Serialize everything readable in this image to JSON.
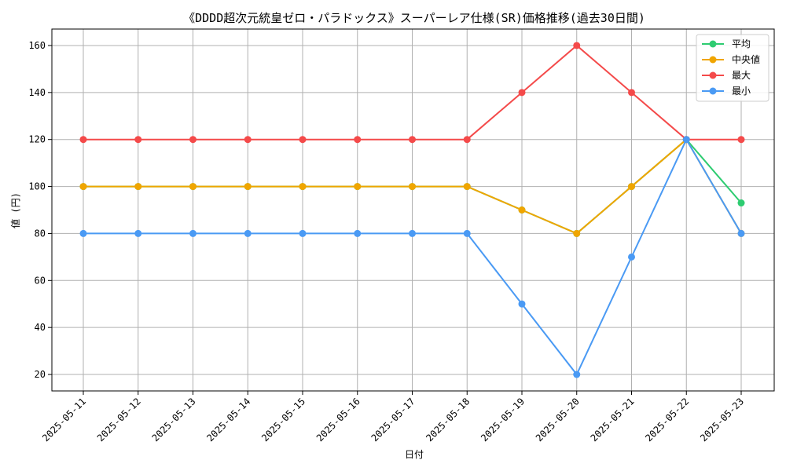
{
  "chart_data": {
    "type": "line",
    "title": "《DDDD超次元統皇ゼロ・パラドックス》スーパーレア仕様(SR)価格推移(過去30日間)",
    "xlabel": "日付",
    "ylabel": "値 (円)",
    "ylim": [
      13,
      167
    ],
    "yticks": [
      20,
      40,
      60,
      80,
      100,
      120,
      140,
      160
    ],
    "grid": true,
    "legend_position": "top-right",
    "categories": [
      "2025-05-11",
      "2025-05-12",
      "2025-05-13",
      "2025-05-14",
      "2025-05-15",
      "2025-05-16",
      "2025-05-17",
      "2025-05-18",
      "2025-05-19",
      "2025-05-20",
      "2025-05-21",
      "2025-05-22",
      "2025-05-23"
    ],
    "series": [
      {
        "name": "平均",
        "color": "#2ecc71",
        "values": [
          100,
          100,
          100,
          100,
          100,
          100,
          100,
          100,
          90,
          80,
          100,
          120,
          93
        ]
      },
      {
        "name": "中央値",
        "color": "#f0a500",
        "values": [
          100,
          100,
          100,
          100,
          100,
          100,
          100,
          100,
          90,
          80,
          100,
          120,
          80
        ]
      },
      {
        "name": "最大",
        "color": "#f44a4a",
        "values": [
          120,
          120,
          120,
          120,
          120,
          120,
          120,
          120,
          140,
          160,
          140,
          120,
          120
        ]
      },
      {
        "name": "最小",
        "color": "#4a9af4",
        "values": [
          80,
          80,
          80,
          80,
          80,
          80,
          80,
          80,
          50,
          20,
          70,
          120,
          80
        ]
      }
    ]
  }
}
